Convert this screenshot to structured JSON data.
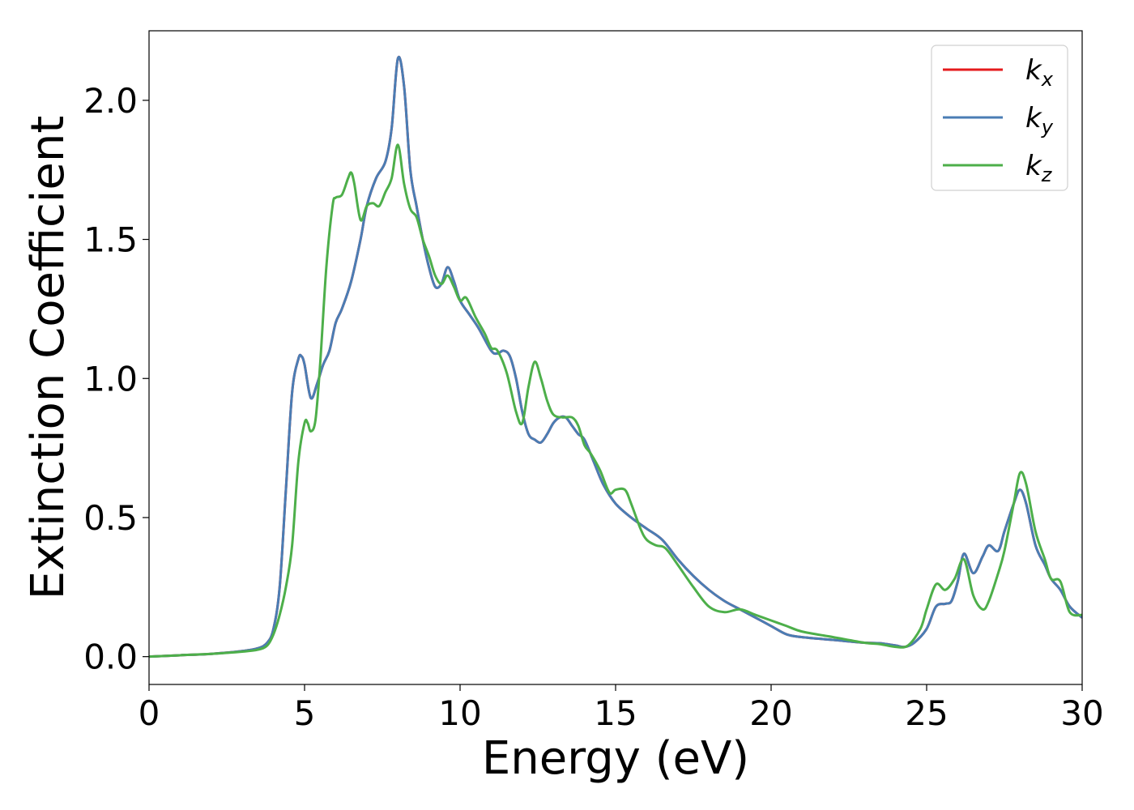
{
  "chart_data": {
    "type": "line",
    "title": "",
    "xlabel": "Energy (eV)",
    "ylabel": "Extinction Coefficient",
    "xlim": [
      0,
      30
    ],
    "ylim": [
      -0.1,
      2.25
    ],
    "xticks": [
      0,
      5,
      10,
      15,
      20,
      25,
      30
    ],
    "xtick_labels": [
      "0",
      "5",
      "10",
      "15",
      "20",
      "25",
      "30"
    ],
    "yticks": [
      0.0,
      0.5,
      1.0,
      1.5,
      2.0
    ],
    "ytick_labels": [
      "0.0",
      "0.5",
      "1.0",
      "1.5",
      "2.0"
    ],
    "grid": false,
    "legend_position": "top-right",
    "series": [
      {
        "name": "k",
        "subscript": "x",
        "color": "#e41a1c",
        "x": [
          0,
          1,
          2,
          3,
          3.5,
          3.8,
          4.0,
          4.2,
          4.4,
          4.6,
          4.8,
          4.9,
          5.0,
          5.2,
          5.4,
          5.6,
          5.8,
          6.0,
          6.2,
          6.5,
          6.8,
          7.0,
          7.3,
          7.6,
          7.8,
          8.0,
          8.2,
          8.4,
          8.6,
          8.8,
          9.0,
          9.2,
          9.4,
          9.6,
          9.8,
          10.0,
          10.3,
          10.6,
          11.0,
          11.2,
          11.4,
          11.6,
          11.8,
          12.0,
          12.2,
          12.4,
          12.6,
          12.8,
          13.0,
          13.2,
          13.4,
          13.6,
          13.8,
          14.0,
          14.3,
          14.6,
          15.0,
          15.5,
          16.0,
          16.5,
          17.0,
          17.5,
          18.0,
          18.5,
          19.0,
          19.5,
          20.0,
          20.5,
          21.0,
          22.0,
          23.0,
          23.5,
          24.0,
          24.3,
          24.6,
          25.0,
          25.3,
          25.6,
          25.8,
          26.0,
          26.2,
          26.5,
          26.8,
          27.0,
          27.3,
          27.5,
          27.8,
          28.0,
          28.2,
          28.5,
          28.8,
          29.0,
          29.3,
          29.6,
          30.0
        ],
        "values": [
          0,
          0.005,
          0.01,
          0.02,
          0.03,
          0.05,
          0.1,
          0.25,
          0.6,
          0.95,
          1.07,
          1.08,
          1.05,
          0.93,
          0.98,
          1.05,
          1.1,
          1.2,
          1.25,
          1.35,
          1.5,
          1.62,
          1.72,
          1.78,
          1.9,
          2.15,
          2.05,
          1.75,
          1.62,
          1.5,
          1.4,
          1.33,
          1.34,
          1.4,
          1.35,
          1.28,
          1.23,
          1.18,
          1.1,
          1.09,
          1.1,
          1.08,
          1.0,
          0.88,
          0.8,
          0.78,
          0.77,
          0.8,
          0.84,
          0.86,
          0.86,
          0.83,
          0.8,
          0.78,
          0.7,
          0.62,
          0.55,
          0.5,
          0.46,
          0.42,
          0.35,
          0.29,
          0.24,
          0.2,
          0.17,
          0.14,
          0.11,
          0.08,
          0.07,
          0.06,
          0.05,
          0.048,
          0.04,
          0.035,
          0.05,
          0.1,
          0.18,
          0.19,
          0.2,
          0.27,
          0.37,
          0.3,
          0.36,
          0.4,
          0.38,
          0.45,
          0.55,
          0.6,
          0.55,
          0.4,
          0.33,
          0.28,
          0.24,
          0.18,
          0.14
        ]
      },
      {
        "name": "k",
        "subscript": "y",
        "color": "#4a7db4",
        "x": [
          0,
          1,
          2,
          3,
          3.5,
          3.8,
          4.0,
          4.2,
          4.4,
          4.6,
          4.8,
          4.9,
          5.0,
          5.2,
          5.4,
          5.6,
          5.8,
          6.0,
          6.2,
          6.5,
          6.8,
          7.0,
          7.3,
          7.6,
          7.8,
          8.0,
          8.2,
          8.4,
          8.6,
          8.8,
          9.0,
          9.2,
          9.4,
          9.6,
          9.8,
          10.0,
          10.3,
          10.6,
          11.0,
          11.2,
          11.4,
          11.6,
          11.8,
          12.0,
          12.2,
          12.4,
          12.6,
          12.8,
          13.0,
          13.2,
          13.4,
          13.6,
          13.8,
          14.0,
          14.3,
          14.6,
          15.0,
          15.5,
          16.0,
          16.5,
          17.0,
          17.5,
          18.0,
          18.5,
          19.0,
          19.5,
          20.0,
          20.5,
          21.0,
          22.0,
          23.0,
          23.5,
          24.0,
          24.3,
          24.6,
          25.0,
          25.3,
          25.6,
          25.8,
          26.0,
          26.2,
          26.5,
          26.8,
          27.0,
          27.3,
          27.5,
          27.8,
          28.0,
          28.2,
          28.5,
          28.8,
          29.0,
          29.3,
          29.6,
          30.0
        ],
        "values": [
          0,
          0.005,
          0.01,
          0.02,
          0.03,
          0.05,
          0.1,
          0.25,
          0.6,
          0.95,
          1.07,
          1.08,
          1.05,
          0.93,
          0.98,
          1.05,
          1.1,
          1.2,
          1.25,
          1.35,
          1.5,
          1.62,
          1.72,
          1.78,
          1.9,
          2.15,
          2.05,
          1.75,
          1.62,
          1.5,
          1.4,
          1.33,
          1.34,
          1.4,
          1.35,
          1.28,
          1.23,
          1.18,
          1.1,
          1.09,
          1.1,
          1.08,
          1.0,
          0.88,
          0.8,
          0.78,
          0.77,
          0.8,
          0.84,
          0.86,
          0.86,
          0.83,
          0.8,
          0.78,
          0.7,
          0.62,
          0.55,
          0.5,
          0.46,
          0.42,
          0.35,
          0.29,
          0.24,
          0.2,
          0.17,
          0.14,
          0.11,
          0.08,
          0.07,
          0.06,
          0.05,
          0.048,
          0.04,
          0.035,
          0.05,
          0.1,
          0.18,
          0.19,
          0.2,
          0.27,
          0.37,
          0.3,
          0.36,
          0.4,
          0.38,
          0.45,
          0.55,
          0.6,
          0.55,
          0.4,
          0.33,
          0.28,
          0.24,
          0.18,
          0.14
        ]
      },
      {
        "name": "k",
        "subscript": "z",
        "color": "#4daf4a",
        "x": [
          0,
          1,
          2,
          3,
          3.5,
          3.8,
          4.0,
          4.2,
          4.4,
          4.6,
          4.8,
          5.0,
          5.1,
          5.2,
          5.35,
          5.5,
          5.7,
          5.9,
          6.0,
          6.2,
          6.4,
          6.5,
          6.6,
          6.8,
          7.0,
          7.2,
          7.4,
          7.6,
          7.8,
          8.0,
          8.2,
          8.4,
          8.6,
          8.8,
          9.0,
          9.2,
          9.4,
          9.6,
          9.8,
          10.0,
          10.2,
          10.5,
          10.8,
          11.0,
          11.2,
          11.5,
          11.8,
          12.0,
          12.2,
          12.4,
          12.6,
          12.8,
          13.0,
          13.3,
          13.6,
          13.8,
          14.0,
          14.2,
          14.5,
          14.8,
          15.0,
          15.3,
          15.5,
          15.8,
          16.0,
          16.3,
          16.6,
          17.0,
          17.5,
          18.0,
          18.5,
          19.0,
          19.5,
          20.0,
          20.5,
          21.0,
          22.0,
          23.0,
          23.5,
          24.0,
          24.4,
          24.8,
          25.0,
          25.3,
          25.6,
          25.9,
          26.2,
          26.5,
          26.8,
          27.0,
          27.3,
          27.5,
          27.8,
          28.0,
          28.2,
          28.5,
          28.8,
          29.0,
          29.3,
          29.6,
          30.0
        ],
        "values": [
          0,
          0.005,
          0.01,
          0.018,
          0.025,
          0.04,
          0.08,
          0.15,
          0.25,
          0.4,
          0.7,
          0.84,
          0.84,
          0.81,
          0.85,
          1.05,
          1.4,
          1.62,
          1.65,
          1.66,
          1.72,
          1.74,
          1.7,
          1.57,
          1.62,
          1.63,
          1.62,
          1.67,
          1.72,
          1.84,
          1.7,
          1.61,
          1.58,
          1.5,
          1.44,
          1.37,
          1.34,
          1.37,
          1.33,
          1.28,
          1.29,
          1.22,
          1.16,
          1.11,
          1.1,
          1.02,
          0.88,
          0.84,
          0.97,
          1.06,
          1.0,
          0.92,
          0.87,
          0.86,
          0.86,
          0.83,
          0.76,
          0.73,
          0.67,
          0.59,
          0.6,
          0.6,
          0.55,
          0.46,
          0.42,
          0.4,
          0.39,
          0.33,
          0.25,
          0.18,
          0.16,
          0.17,
          0.15,
          0.13,
          0.11,
          0.09,
          0.07,
          0.05,
          0.045,
          0.035,
          0.04,
          0.1,
          0.17,
          0.26,
          0.24,
          0.28,
          0.35,
          0.22,
          0.17,
          0.2,
          0.3,
          0.38,
          0.55,
          0.66,
          0.62,
          0.45,
          0.35,
          0.28,
          0.27,
          0.16,
          0.15
        ]
      }
    ]
  }
}
